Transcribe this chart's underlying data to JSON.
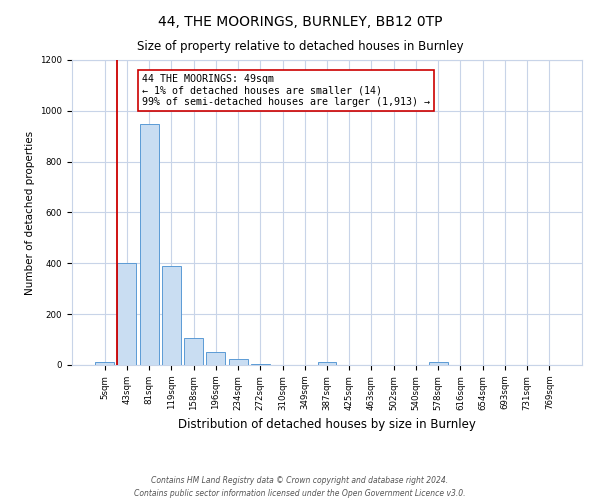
{
  "title": "44, THE MOORINGS, BURNLEY, BB12 0TP",
  "subtitle": "Size of property relative to detached houses in Burnley",
  "xlabel": "Distribution of detached houses by size in Burnley",
  "ylabel": "Number of detached properties",
  "bar_labels": [
    "5sqm",
    "43sqm",
    "81sqm",
    "119sqm",
    "158sqm",
    "196sqm",
    "234sqm",
    "272sqm",
    "310sqm",
    "349sqm",
    "387sqm",
    "425sqm",
    "463sqm",
    "502sqm",
    "540sqm",
    "578sqm",
    "616sqm",
    "654sqm",
    "693sqm",
    "731sqm",
    "769sqm"
  ],
  "bar_values": [
    10,
    400,
    950,
    390,
    105,
    50,
    22,
    5,
    0,
    0,
    10,
    0,
    0,
    0,
    0,
    10,
    0,
    0,
    0,
    0,
    0
  ],
  "bar_color": "#c9ddf2",
  "bar_edge_color": "#5b9bd5",
  "vline_color": "#cc0000",
  "annotation_text": "44 THE MOORINGS: 49sqm\n← 1% of detached houses are smaller (14)\n99% of semi-detached houses are larger (1,913) →",
  "annotation_box_color": "#ffffff",
  "annotation_box_edge_color": "#cc0000",
  "ylim": [
    0,
    1200
  ],
  "yticks": [
    0,
    200,
    400,
    600,
    800,
    1000,
    1200
  ],
  "footer": "Contains HM Land Registry data © Crown copyright and database right 2024.\nContains public sector information licensed under the Open Government Licence v3.0.",
  "background_color": "#ffffff",
  "grid_color": "#c8d4e8",
  "title_fontsize": 10,
  "subtitle_fontsize": 8.5,
  "ylabel_fontsize": 7.5,
  "xlabel_fontsize": 8.5,
  "tick_fontsize": 6.2,
  "annotation_fontsize": 7.2,
  "footer_fontsize": 5.5
}
